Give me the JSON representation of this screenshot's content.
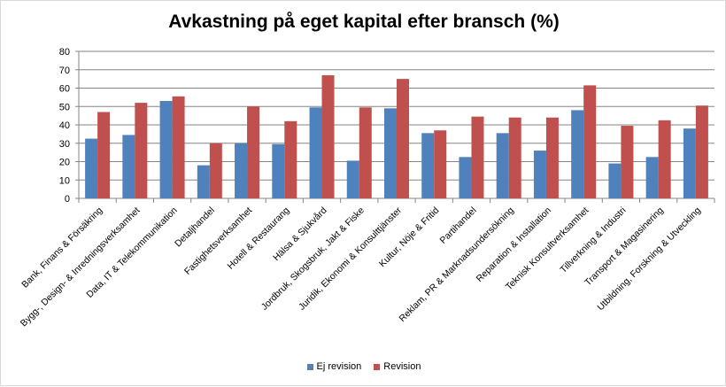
{
  "chart_data": {
    "type": "bar",
    "title": "Avkastning på eget kapital efter bransch (%)",
    "xlabel": "",
    "ylabel": "",
    "ylim": [
      0,
      80
    ],
    "yticks": [
      0,
      10,
      20,
      30,
      40,
      50,
      60,
      70,
      80
    ],
    "grid": true,
    "legend_position": "bottom",
    "categories": [
      "Bank, Finans & Försäkring",
      "Bygg-, Design- & Inredningsverksamhet",
      "Data, IT & Telekommunikation",
      "Detaljhandel",
      "Fastighetsverksamhet",
      "Hotell & Restaurang",
      "Hälsa & Sjukvård",
      "Jordbruk, Skogsbruk, Jakt & Fiske",
      "Juridik, Ekonomi & Konsulttjänster",
      "Kultur, Nöje & Fritid",
      "Partihandel",
      "Reklam, PR & Marknadsundersökning",
      "Reparation & Installation",
      "Teknisk Konsultverksamhet",
      "Tillverkning & Industri",
      "Transport & Magasinering",
      "Utbildning, Forskning & Utveckling"
    ],
    "series": [
      {
        "name": "Ej revision",
        "color": "#4f81bd",
        "values": [
          32.5,
          34.5,
          53,
          18,
          30,
          29.5,
          49.5,
          20.5,
          49,
          35.5,
          22.5,
          35.5,
          26,
          48,
          19,
          22.5,
          38
        ]
      },
      {
        "name": "Revision",
        "color": "#c0504d",
        "values": [
          47,
          52,
          55.5,
          30,
          50,
          42,
          67,
          49.5,
          65,
          37,
          44.5,
          44,
          44,
          61.5,
          39.5,
          42.5,
          50.5
        ]
      }
    ]
  }
}
